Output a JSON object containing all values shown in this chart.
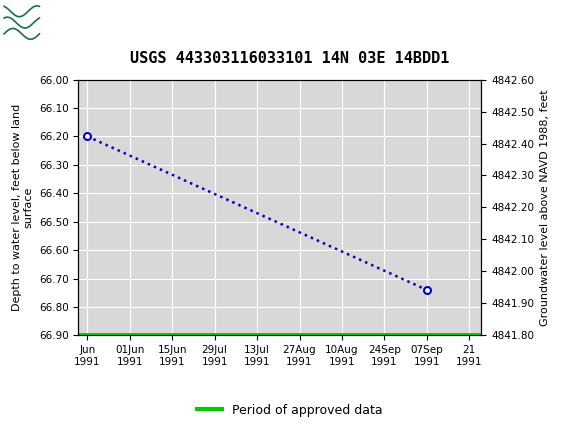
{
  "title": "USGS 443303116033101 14N 03E 14BDD1",
  "header_bg_color": "#1a7040",
  "ylabel_left": "Depth to water level, feet below land\nsurface",
  "ylabel_right": "Groundwater level above NAVD 1988, feet",
  "ylim_left": [
    66.9,
    66.0
  ],
  "ylim_right": [
    4841.8,
    4842.6
  ],
  "yticks_left": [
    66.0,
    66.1,
    66.2,
    66.3,
    66.4,
    66.5,
    66.6,
    66.7,
    66.8,
    66.9
  ],
  "yticks_right": [
    4841.8,
    4841.9,
    4842.0,
    4842.1,
    4842.2,
    4842.3,
    4842.4,
    4842.5,
    4842.6
  ],
  "data_points_x": [
    0,
    112
  ],
  "data_points_y": [
    66.2,
    66.74
  ],
  "green_line_y": 66.9,
  "xtick_positions": [
    0,
    14,
    28,
    42,
    56,
    70,
    84,
    98,
    112,
    126
  ],
  "xtick_labels_line1": [
    "Jun",
    "01Jun",
    "15Jun",
    "29Jul",
    "13Jul",
    "27Aug",
    "10Aug",
    "24Sep",
    "07Sep",
    "21"
  ],
  "xtick_labels_line2": [
    "1991",
    "1991",
    "1991",
    "1991",
    "1991",
    "1991",
    "1991",
    "1991",
    "1991",
    "1991"
  ],
  "xlim": [
    -3,
    130
  ],
  "legend_label": "Period of approved data",
  "legend_line_color": "#00cc00",
  "dot_line_color": "#0000cc",
  "plot_bg_color": "#d8d8d8",
  "grid_color": "#ffffff",
  "title_fontsize": 11,
  "axis_label_fontsize": 8,
  "tick_fontsize": 7.5
}
